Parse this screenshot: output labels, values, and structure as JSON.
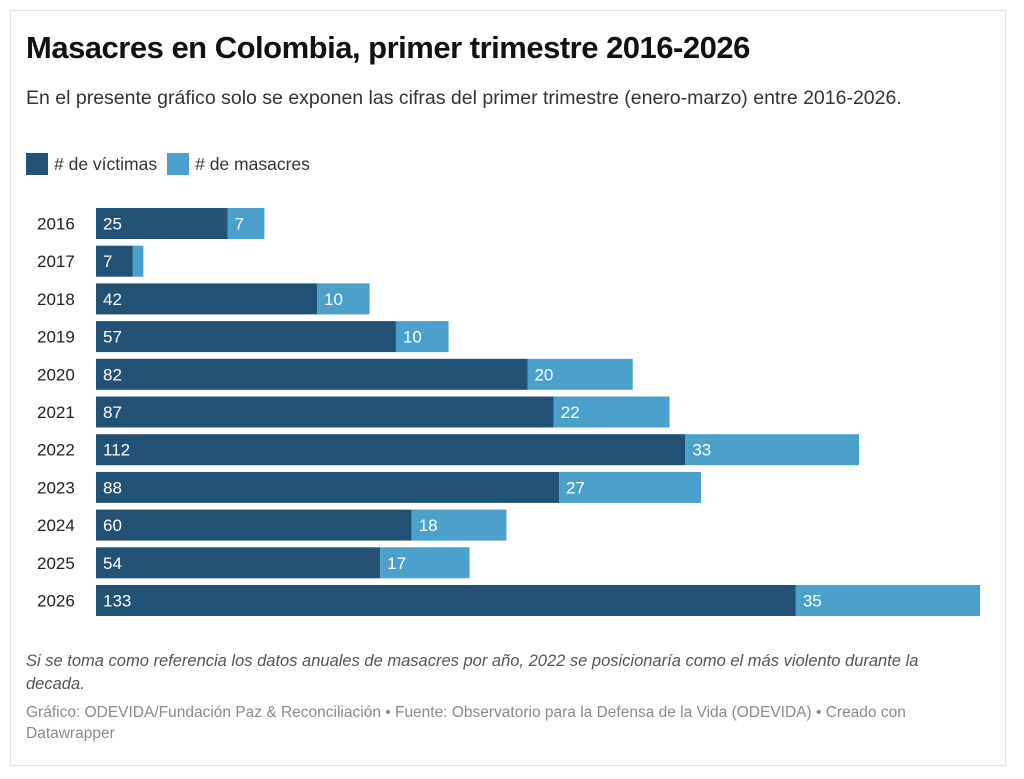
{
  "header": {
    "title": "Masacres en Colombia, primer trimestre 2016-2026",
    "subtitle": "En el presente gráfico solo se exponen las cifras del primer trimestre (enero-marzo) entre 2016-2026."
  },
  "legend": [
    {
      "label": "# de víctimas",
      "color": "#215275"
    },
    {
      "label": "# de masacres",
      "color": "#4ba1cb"
    }
  ],
  "note": "Si se toma como referencia los datos anuales de masacres por año, 2022 se posicionaría como el más violento durante la decada.",
  "footer": "Gráfico: ODEVIDA/Fundación Paz & Reconciliación • Fuente: Observatorio para la Defensa de la Vida (ODEVIDA) • Creado con Datawrapper",
  "chart_data": {
    "type": "bar",
    "orientation": "horizontal",
    "stacked": true,
    "title": "Masacres en Colombia, primer trimestre 2016-2026",
    "xlabel": "",
    "ylabel": "",
    "categories": [
      "2016",
      "2017",
      "2018",
      "2019",
      "2020",
      "2021",
      "2022",
      "2023",
      "2024",
      "2025",
      "2026"
    ],
    "series": [
      {
        "name": "# de víctimas",
        "color": "#215275",
        "values": [
          25,
          7,
          42,
          57,
          82,
          87,
          112,
          88,
          60,
          54,
          133
        ]
      },
      {
        "name": "# de masacres",
        "color": "#4ba1cb",
        "values": [
          7,
          2,
          10,
          10,
          20,
          22,
          33,
          27,
          18,
          17,
          35
        ]
      }
    ],
    "hidden_labels": [
      {
        "category": "2017",
        "series": "# de masacres"
      }
    ],
    "xlim": [
      0,
      168
    ],
    "grid": false,
    "legend_position": "top-left"
  }
}
